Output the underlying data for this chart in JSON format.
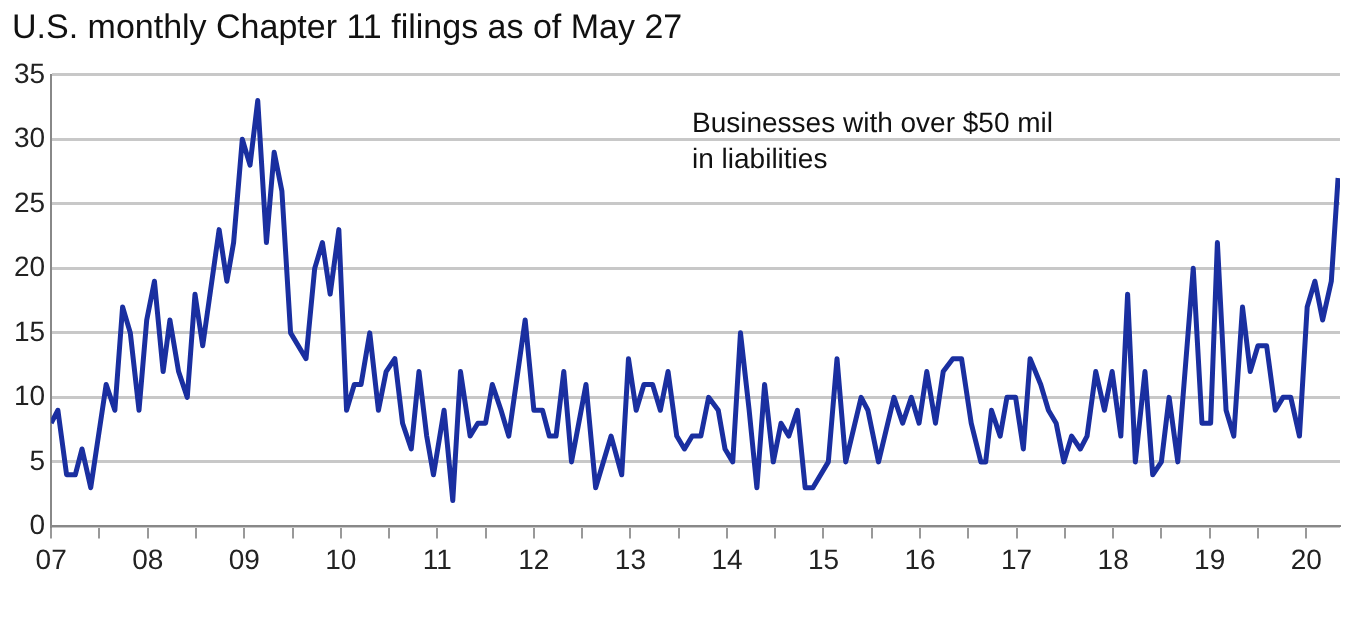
{
  "chart_data": {
    "type": "line",
    "title": "U.S. monthly Chapter 11 filings as of May 27",
    "annotations": [
      "Businesses with over $50 mil in liabilities"
    ],
    "xlim": [
      2007,
      2020.35
    ],
    "xticks": [
      {
        "value": 2007,
        "label": "07"
      },
      {
        "value": 2007.5,
        "label": null
      },
      {
        "value": 2008,
        "label": "08"
      },
      {
        "value": 2008.5,
        "label": null
      },
      {
        "value": 2009,
        "label": "09"
      },
      {
        "value": 2009.5,
        "label": null
      },
      {
        "value": 2010,
        "label": "10"
      },
      {
        "value": 2010.5,
        "label": null
      },
      {
        "value": 2011,
        "label": "11"
      },
      {
        "value": 2011.5,
        "label": null
      },
      {
        "value": 2012,
        "label": "12"
      },
      {
        "value": 2012.5,
        "label": null
      },
      {
        "value": 2013,
        "label": "13"
      },
      {
        "value": 2013.5,
        "label": null
      },
      {
        "value": 2014,
        "label": "14"
      },
      {
        "value": 2014.5,
        "label": null
      },
      {
        "value": 2015,
        "label": "15"
      },
      {
        "value": 2015.5,
        "label": null
      },
      {
        "value": 2016,
        "label": "16"
      },
      {
        "value": 2016.5,
        "label": null
      },
      {
        "value": 2017,
        "label": "17"
      },
      {
        "value": 2017.5,
        "label": null
      },
      {
        "value": 2018,
        "label": "18"
      },
      {
        "value": 2018.5,
        "label": null
      },
      {
        "value": 2019,
        "label": "19"
      },
      {
        "value": 2019.5,
        "label": null
      },
      {
        "value": 2020,
        "label": "20"
      }
    ],
    "ylim": [
      0,
      35
    ],
    "yticks": [
      0,
      5,
      10,
      15,
      20,
      25,
      30,
      35
    ],
    "grid": "y",
    "legend": false,
    "marker": "none",
    "line_style": "solid",
    "series": [
      {
        "color": "#1a2fa0",
        "x": [
          2007.0,
          2007.07,
          2007.16,
          2007.25,
          2007.32,
          2007.41,
          2007.57,
          2007.66,
          2007.74,
          2007.82,
          2007.91,
          2007.99,
          2008.07,
          2008.16,
          2008.23,
          2008.32,
          2008.41,
          2008.49,
          2008.57,
          2008.74,
          2008.82,
          2008.89,
          2008.98,
          2009.06,
          2009.14,
          2009.23,
          2009.31,
          2009.39,
          2009.48,
          2009.64,
          2009.73,
          2009.81,
          2009.89,
          2009.98,
          2010.06,
          2010.14,
          2010.21,
          2010.3,
          2010.39,
          2010.47,
          2010.56,
          2010.64,
          2010.73,
          2010.81,
          2010.89,
          2010.96,
          2011.07,
          2011.16,
          2011.24,
          2011.34,
          2011.42,
          2011.5,
          2011.57,
          2011.66,
          2011.74,
          2011.91,
          2012.0,
          2012.09,
          2012.16,
          2012.23,
          2012.31,
          2012.39,
          2012.54,
          2012.64,
          2012.8,
          2012.91,
          2012.98,
          2013.06,
          2013.14,
          2013.23,
          2013.31,
          2013.39,
          2013.48,
          2013.56,
          2013.64,
          2013.73,
          2013.81,
          2013.91,
          2013.98,
          2014.06,
          2014.14,
          2014.23,
          2014.31,
          2014.39,
          2014.48,
          2014.56,
          2014.64,
          2014.73,
          2014.81,
          2014.89,
          2015.05,
          2015.14,
          2015.23,
          2015.39,
          2015.46,
          2015.57,
          2015.73,
          2015.82,
          2015.91,
          2015.99,
          2016.07,
          2016.16,
          2016.24,
          2016.34,
          2016.43,
          2016.53,
          2016.63,
          2016.68,
          2016.74,
          2016.83,
          2016.9,
          2016.99,
          2017.07,
          2017.14,
          2017.25,
          2017.33,
          2017.41,
          2017.49,
          2017.57,
          2017.66,
          2017.73,
          2017.82,
          2017.91,
          2017.99,
          2018.08,
          2018.15,
          2018.23,
          2018.33,
          2018.41,
          2018.5,
          2018.58,
          2018.67,
          2018.83,
          2018.92,
          2019.01,
          2019.08,
          2019.17,
          2019.25,
          2019.34,
          2019.42,
          2019.5,
          2019.59,
          2019.68,
          2019.76,
          2019.84,
          2019.93,
          2020.01,
          2020.09,
          2020.17,
          2020.26,
          2020.33
        ],
        "values": [
          8,
          9,
          4,
          4,
          6,
          3,
          11,
          9,
          17,
          15,
          9,
          16,
          19,
          12,
          16,
          12,
          10,
          18,
          14,
          23,
          19,
          22,
          30,
          28,
          33,
          22,
          29,
          26,
          15,
          13,
          20,
          22,
          18,
          23,
          9,
          11,
          11,
          15,
          9,
          12,
          13,
          8,
          6,
          12,
          7,
          4,
          9,
          2,
          12,
          7,
          8,
          8,
          11,
          9,
          7,
          16,
          9,
          9,
          7,
          7,
          12,
          5,
          11,
          3,
          7,
          4,
          13,
          9,
          11,
          11,
          9,
          12,
          7,
          6,
          7,
          7,
          10,
          9,
          6,
          5,
          15,
          9,
          3,
          11,
          5,
          8,
          7,
          9,
          3,
          3,
          5,
          13,
          5,
          10,
          9,
          5,
          10,
          8,
          10,
          8,
          12,
          8,
          12,
          13,
          13,
          8,
          5,
          5,
          9,
          7,
          10,
          10,
          6,
          13,
          11,
          9,
          8,
          5,
          7,
          6,
          7,
          12,
          9,
          12,
          7,
          18,
          5,
          12,
          4,
          5,
          10,
          5,
          20,
          8,
          8,
          22,
          9,
          7,
          17,
          12,
          14,
          14,
          9,
          10,
          10,
          7,
          17,
          19,
          16,
          19,
          27
        ]
      }
    ]
  }
}
